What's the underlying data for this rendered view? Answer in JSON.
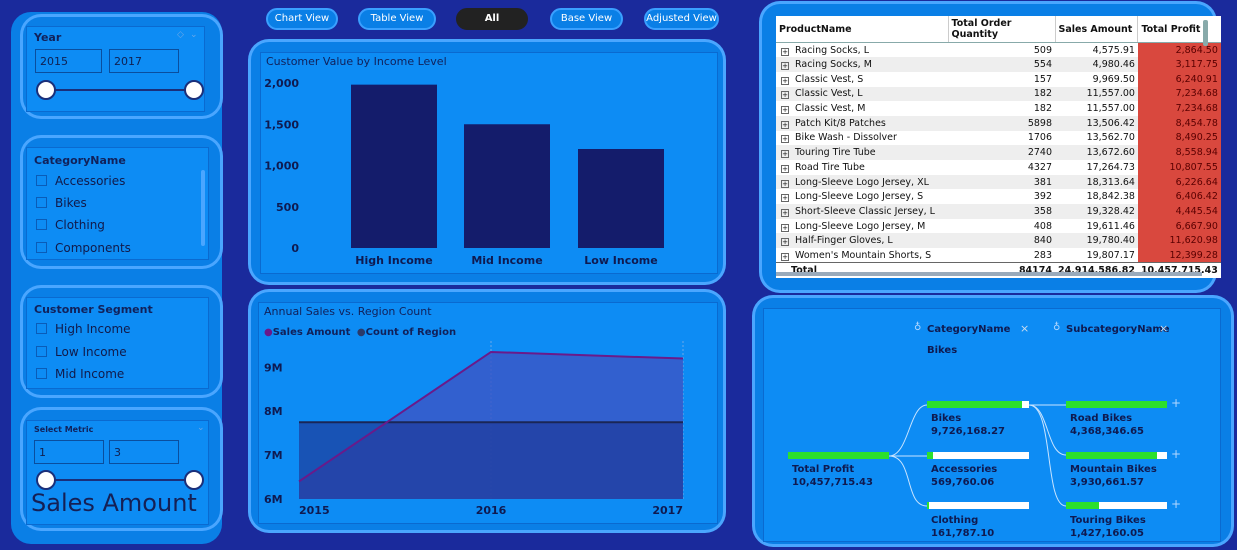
{
  "nav": {
    "buttons": [
      "Chart View",
      "Table View",
      "All",
      "Base View",
      "Adjusted View"
    ],
    "active": "All"
  },
  "year_slicer": {
    "title": "Year",
    "from": "2015",
    "to": "2017",
    "range": [
      0,
      1
    ]
  },
  "category_slicer": {
    "title": "CategoryName",
    "items": [
      "Accessories",
      "Bikes",
      "Clothing",
      "Components"
    ]
  },
  "segment_slicer": {
    "title": "Customer Segment",
    "items": [
      "High Income",
      "Low Income",
      "Mid Income"
    ]
  },
  "metric_slicer": {
    "title": "Select Metric",
    "from": "1",
    "to": "3",
    "range": [
      0,
      1
    ],
    "selected": "Sales Amount"
  },
  "bar_chart": {
    "title": "Customer Value by Income Level",
    "chart_data": {
      "type": "bar",
      "categories": [
        "High Income",
        "Mid Income",
        "Low Income"
      ],
      "values": [
        1980,
        1500,
        1200
      ],
      "ylim": [
        0,
        2000
      ],
      "yticks": [
        "2,000",
        "1,500",
        "1,000",
        "500",
        "0"
      ],
      "color": "#141c6b"
    }
  },
  "line_chart": {
    "title": "Annual Sales vs. Region Count",
    "chart_data": {
      "type": "area",
      "x": [
        "2015",
        "2016",
        "2017"
      ],
      "series": [
        {
          "name": "Sales Amount",
          "values": [
            6.4,
            9.35,
            9.2
          ],
          "color": "#6a1a8a"
        },
        {
          "name": "Count of Region",
          "values": [
            7.75,
            7.75,
            7.75
          ],
          "color": "#2a3a6a"
        }
      ],
      "ylim": [
        6,
        9.6
      ],
      "yticks": [
        "9M",
        "8M",
        "7M",
        "6M"
      ],
      "legend": "top-left"
    }
  },
  "table": {
    "headers": [
      "ProductName",
      "Total Order Quantity",
      "Sales Amount",
      "Total Profit"
    ],
    "rows": [
      [
        "Racing Socks, L",
        "509",
        "4,575.91",
        "2,864.50"
      ],
      [
        "Racing Socks, M",
        "554",
        "4,980.46",
        "3,117.75"
      ],
      [
        "Classic Vest, S",
        "157",
        "9,969.50",
        "6,240.91"
      ],
      [
        "Classic Vest, L",
        "182",
        "11,557.00",
        "7,234.68"
      ],
      [
        "Classic Vest, M",
        "182",
        "11,557.00",
        "7,234.68"
      ],
      [
        "Patch Kit/8 Patches",
        "5898",
        "13,506.42",
        "8,454.78"
      ],
      [
        "Bike Wash - Dissolver",
        "1706",
        "13,562.70",
        "8,490.25"
      ],
      [
        "Touring Tire Tube",
        "2740",
        "13,672.60",
        "8,558.94"
      ],
      [
        "Road Tire Tube",
        "4327",
        "17,264.73",
        "10,807.55"
      ],
      [
        "Long-Sleeve Logo Jersey, XL",
        "381",
        "18,313.64",
        "6,226.64"
      ],
      [
        "Long-Sleeve Logo Jersey, S",
        "392",
        "18,842.38",
        "6,406.42"
      ],
      [
        "Short-Sleeve Classic Jersey, L",
        "358",
        "19,328.42",
        "4,445.54"
      ],
      [
        "Long-Sleeve Logo Jersey, M",
        "408",
        "19,611.46",
        "6,667.90"
      ],
      [
        "Half-Finger Gloves, L",
        "840",
        "19,780.40",
        "11,620.98"
      ],
      [
        "Women's Mountain Shorts, S",
        "283",
        "19,807.17",
        "12,399.28"
      ]
    ],
    "total": [
      "Total",
      "84174",
      "24,914,586.82",
      "10,457,715.43"
    ]
  },
  "tree": {
    "levels": [
      "CategoryName",
      "SubcategoryName"
    ],
    "selected_category": "Bikes",
    "root": {
      "label": "Total Profit",
      "value": "10,457,715.43",
      "fill": 1.0
    },
    "categories": [
      {
        "label": "Bikes",
        "value": "9,726,168.27",
        "fill": 0.93
      },
      {
        "label": "Accessories",
        "value": "569,760.06",
        "fill": 0.06
      },
      {
        "label": "Clothing",
        "value": "161,787.10",
        "fill": 0.02
      }
    ],
    "subcategories": [
      {
        "label": "Road Bikes",
        "value": "4,368,346.65",
        "fill": 1.0
      },
      {
        "label": "Mountain Bikes",
        "value": "3,930,661.57",
        "fill": 0.9
      },
      {
        "label": "Touring Bikes",
        "value": "1,427,160.05",
        "fill": 0.33
      }
    ]
  }
}
